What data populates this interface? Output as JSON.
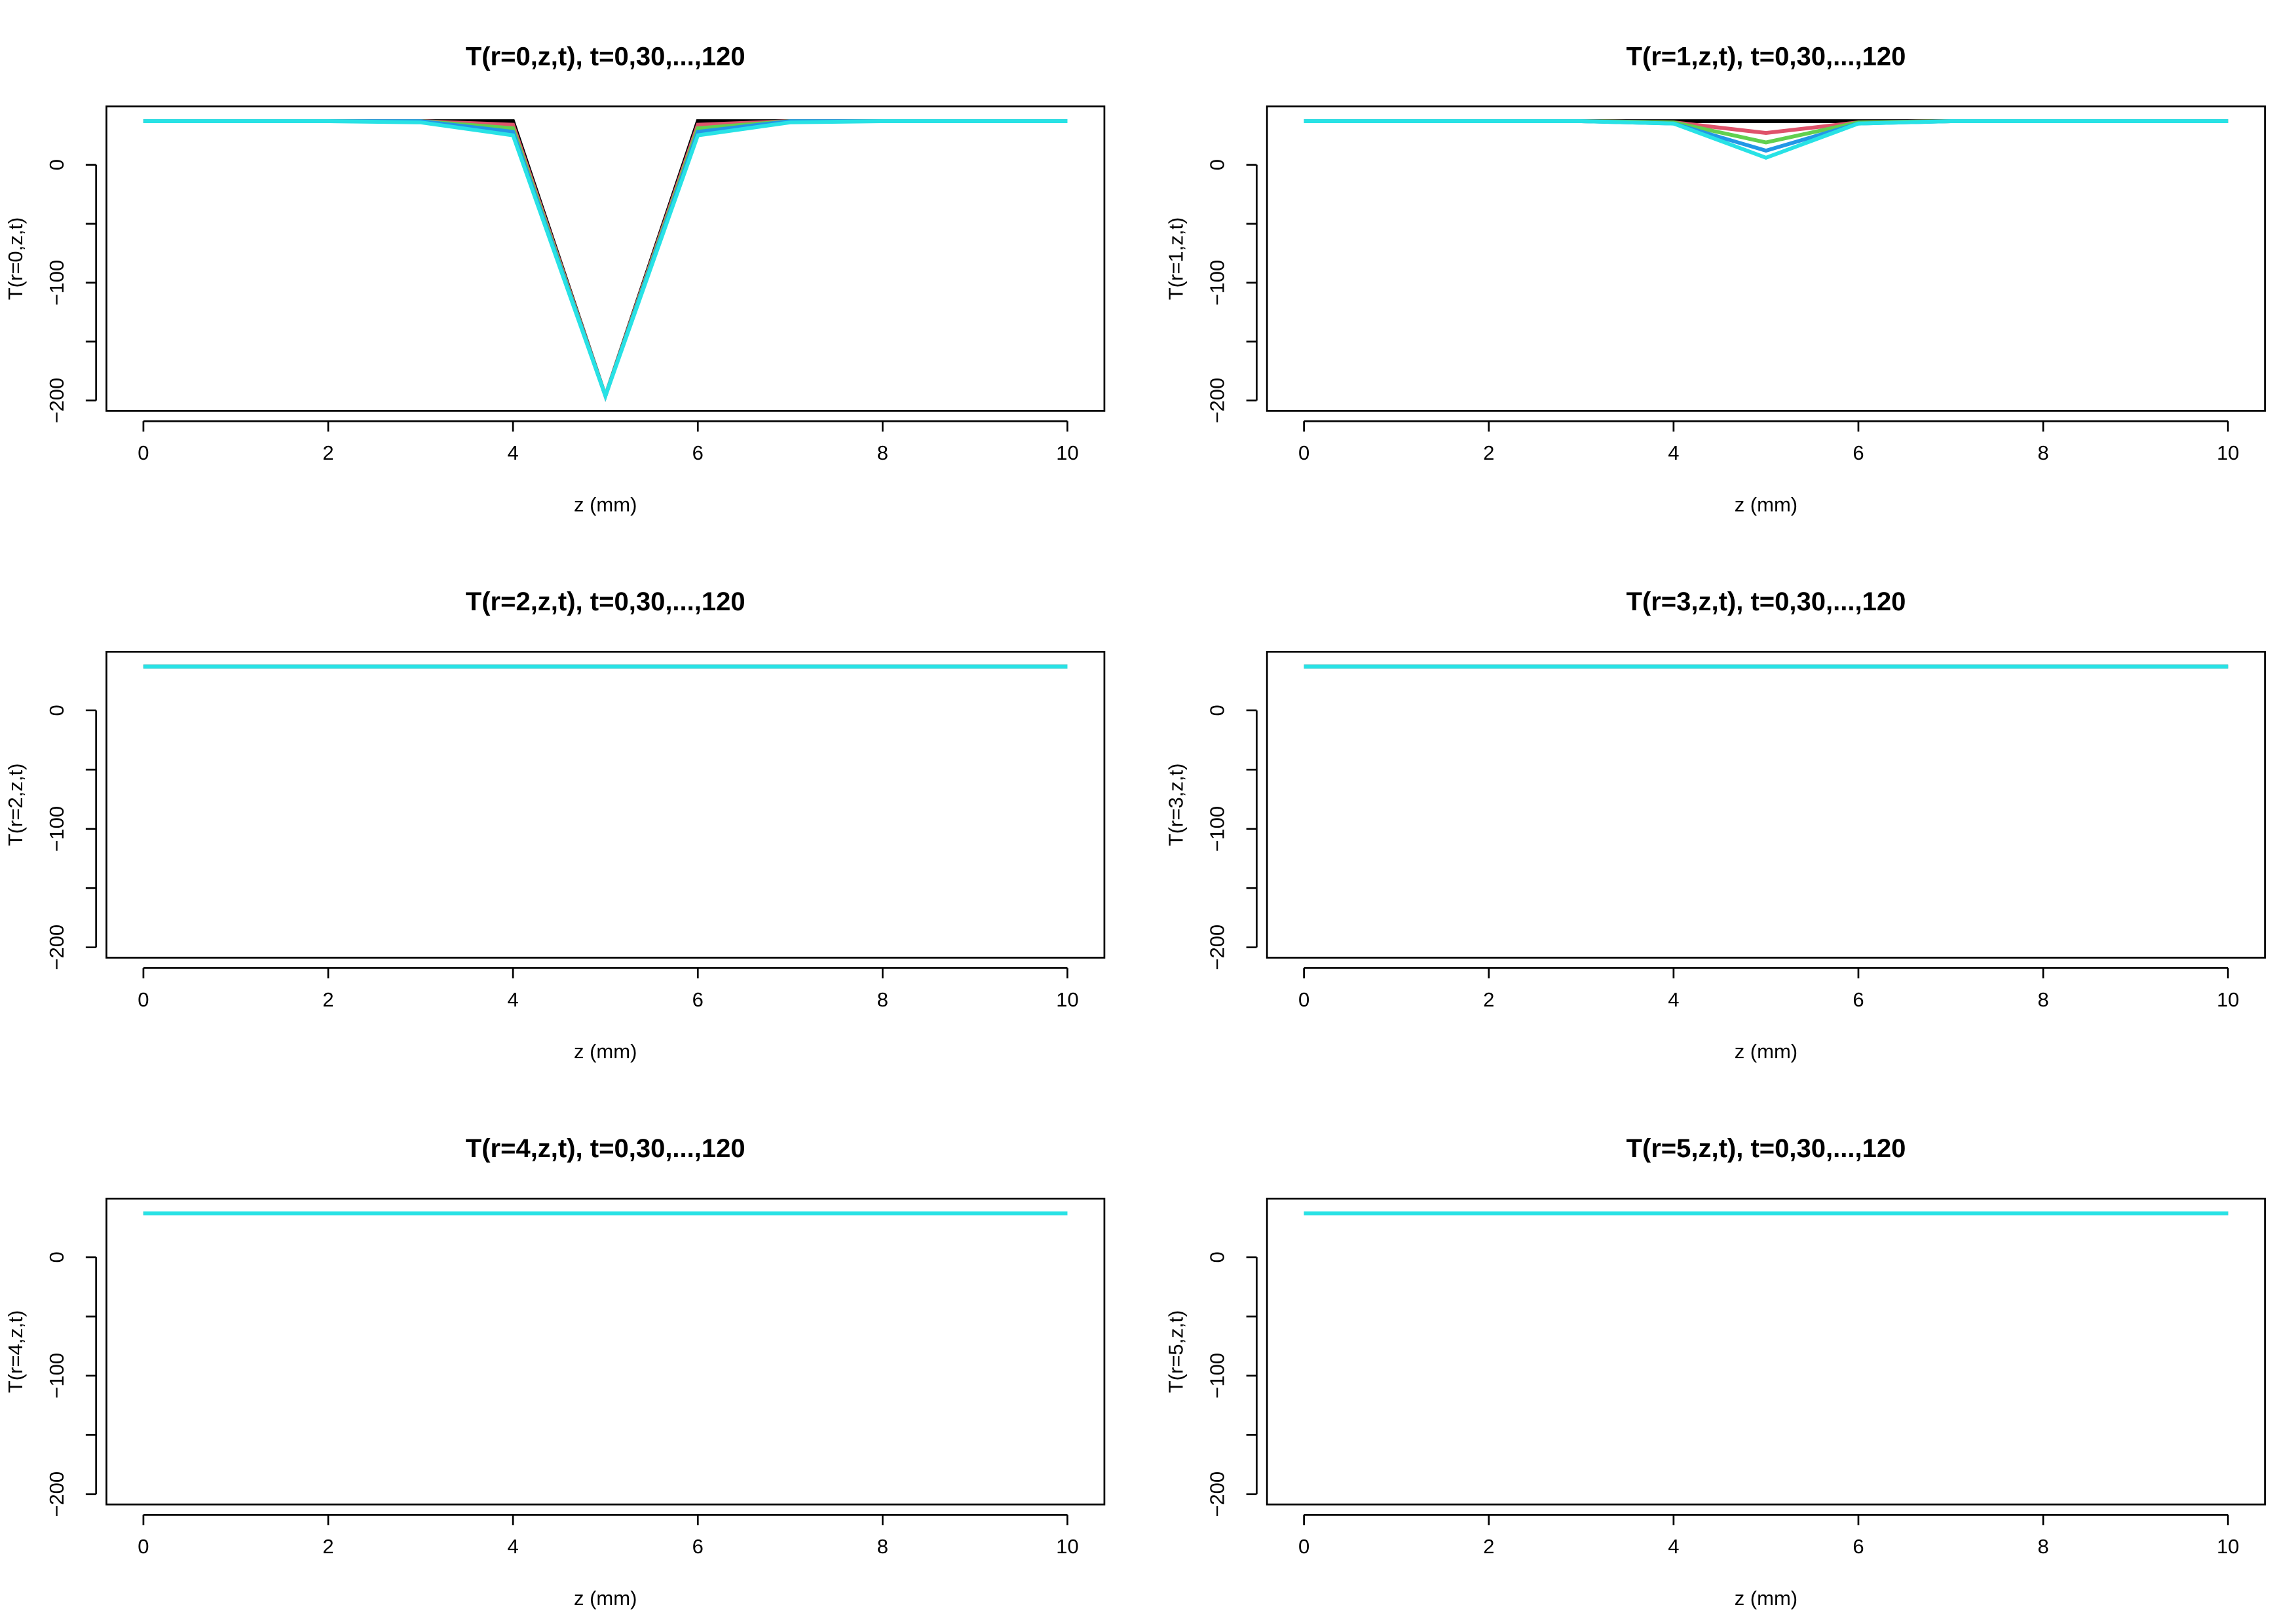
{
  "colors": {
    "background": "#ffffff",
    "axis": "#000000",
    "series": [
      "#000000",
      "#df536b",
      "#61d04f",
      "#2297e6",
      "#28e2e5"
    ]
  },
  "chart_data": [
    {
      "type": "line",
      "title": "T(r=0,z,t), t=0,30,...,120",
      "xlabel": "z (mm)",
      "ylabel": "T(r=0,z,t)",
      "xlim": [
        0,
        10
      ],
      "ylim": [
        -200,
        37
      ],
      "xticks": [
        "0",
        "2",
        "4",
        "6",
        "8",
        "10"
      ],
      "yticks": [
        "0",
        "-100",
        "-200"
      ],
      "grid": false,
      "x": [
        0,
        1,
        2,
        3,
        4,
        5,
        6,
        7,
        8,
        9,
        10
      ],
      "series": [
        {
          "values": [
            37,
            37,
            37,
            37,
            37,
            -196,
            37,
            37,
            37,
            37,
            37
          ]
        },
        {
          "values": [
            37,
            37,
            37,
            37,
            34,
            -196,
            34,
            37,
            37,
            37,
            37
          ]
        },
        {
          "values": [
            37,
            37,
            37,
            37,
            31,
            -196,
            31,
            37,
            37,
            37,
            37
          ]
        },
        {
          "values": [
            37,
            37,
            37,
            37,
            28,
            -196,
            28,
            37,
            37,
            37,
            37
          ]
        },
        {
          "values": [
            37,
            37,
            37,
            36,
            25,
            -196,
            25,
            36,
            37,
            37,
            37
          ]
        }
      ]
    },
    {
      "type": "line",
      "title": "T(r=1,z,t), t=0,30,...,120",
      "xlabel": "z (mm)",
      "ylabel": "T(r=1,z,t)",
      "xlim": [
        0,
        10
      ],
      "ylim": [
        -200,
        37
      ],
      "xticks": [
        "0",
        "2",
        "4",
        "6",
        "8",
        "10"
      ],
      "yticks": [
        "0",
        "-100",
        "-200"
      ],
      "grid": false,
      "x": [
        0,
        1,
        2,
        3,
        4,
        5,
        6,
        7,
        8,
        9,
        10
      ],
      "series": [
        {
          "values": [
            37,
            37,
            37,
            37,
            37,
            37,
            37,
            37,
            37,
            37,
            37
          ]
        },
        {
          "values": [
            37,
            37,
            37,
            37,
            36,
            27,
            36,
            37,
            37,
            37,
            37
          ]
        },
        {
          "values": [
            37,
            37,
            37,
            37,
            36,
            19,
            36,
            37,
            37,
            37,
            37
          ]
        },
        {
          "values": [
            37,
            37,
            37,
            37,
            35,
            12,
            35,
            37,
            37,
            37,
            37
          ]
        },
        {
          "values": [
            37,
            37,
            37,
            37,
            35,
            6,
            35,
            37,
            37,
            37,
            37
          ]
        }
      ]
    },
    {
      "type": "line",
      "title": "T(r=2,z,t), t=0,30,...,120",
      "xlabel": "z (mm)",
      "ylabel": "T(r=2,z,t)",
      "xlim": [
        0,
        10
      ],
      "ylim": [
        -200,
        37
      ],
      "xticks": [
        "0",
        "2",
        "4",
        "6",
        "8",
        "10"
      ],
      "yticks": [
        "0",
        "-100",
        "-200"
      ],
      "grid": false,
      "x": [
        0,
        1,
        2,
        3,
        4,
        5,
        6,
        7,
        8,
        9,
        10
      ],
      "series": [
        {
          "values": [
            37,
            37,
            37,
            37,
            37,
            37,
            37,
            37,
            37,
            37,
            37
          ]
        },
        {
          "values": [
            37,
            37,
            37,
            37,
            37,
            37,
            37,
            37,
            37,
            37,
            37
          ]
        },
        {
          "values": [
            37,
            37,
            37,
            37,
            37,
            37,
            37,
            37,
            37,
            37,
            37
          ]
        },
        {
          "values": [
            37,
            37,
            37,
            37,
            37,
            37,
            37,
            37,
            37,
            37,
            37
          ]
        },
        {
          "values": [
            37,
            37,
            37,
            37,
            37,
            37,
            37,
            37,
            37,
            37,
            37
          ]
        }
      ]
    },
    {
      "type": "line",
      "title": "T(r=3,z,t), t=0,30,...,120",
      "xlabel": "z (mm)",
      "ylabel": "T(r=3,z,t)",
      "xlim": [
        0,
        10
      ],
      "ylim": [
        -200,
        37
      ],
      "xticks": [
        "0",
        "2",
        "4",
        "6",
        "8",
        "10"
      ],
      "yticks": [
        "0",
        "-100",
        "-200"
      ],
      "grid": false,
      "x": [
        0,
        1,
        2,
        3,
        4,
        5,
        6,
        7,
        8,
        9,
        10
      ],
      "series": [
        {
          "values": [
            37,
            37,
            37,
            37,
            37,
            37,
            37,
            37,
            37,
            37,
            37
          ]
        },
        {
          "values": [
            37,
            37,
            37,
            37,
            37,
            37,
            37,
            37,
            37,
            37,
            37
          ]
        },
        {
          "values": [
            37,
            37,
            37,
            37,
            37,
            37,
            37,
            37,
            37,
            37,
            37
          ]
        },
        {
          "values": [
            37,
            37,
            37,
            37,
            37,
            37,
            37,
            37,
            37,
            37,
            37
          ]
        },
        {
          "values": [
            37,
            37,
            37,
            37,
            37,
            37,
            37,
            37,
            37,
            37,
            37
          ]
        }
      ]
    },
    {
      "type": "line",
      "title": "T(r=4,z,t), t=0,30,...,120",
      "xlabel": "z (mm)",
      "ylabel": "T(r=4,z,t)",
      "xlim": [
        0,
        10
      ],
      "ylim": [
        -200,
        37
      ],
      "xticks": [
        "0",
        "2",
        "4",
        "6",
        "8",
        "10"
      ],
      "yticks": [
        "0",
        "-100",
        "-200"
      ],
      "grid": false,
      "x": [
        0,
        1,
        2,
        3,
        4,
        5,
        6,
        7,
        8,
        9,
        10
      ],
      "series": [
        {
          "values": [
            37,
            37,
            37,
            37,
            37,
            37,
            37,
            37,
            37,
            37,
            37
          ]
        },
        {
          "values": [
            37,
            37,
            37,
            37,
            37,
            37,
            37,
            37,
            37,
            37,
            37
          ]
        },
        {
          "values": [
            37,
            37,
            37,
            37,
            37,
            37,
            37,
            37,
            37,
            37,
            37
          ]
        },
        {
          "values": [
            37,
            37,
            37,
            37,
            37,
            37,
            37,
            37,
            37,
            37,
            37
          ]
        },
        {
          "values": [
            37,
            37,
            37,
            37,
            37,
            37,
            37,
            37,
            37,
            37,
            37
          ]
        }
      ]
    },
    {
      "type": "line",
      "title": "T(r=5,z,t), t=0,30,...,120",
      "xlabel": "z (mm)",
      "ylabel": "T(r=5,z,t)",
      "xlim": [
        0,
        10
      ],
      "ylim": [
        -200,
        37
      ],
      "xticks": [
        "0",
        "2",
        "4",
        "6",
        "8",
        "10"
      ],
      "yticks": [
        "0",
        "-100",
        "-200"
      ],
      "grid": false,
      "x": [
        0,
        1,
        2,
        3,
        4,
        5,
        6,
        7,
        8,
        9,
        10
      ],
      "series": [
        {
          "values": [
            37,
            37,
            37,
            37,
            37,
            37,
            37,
            37,
            37,
            37,
            37
          ]
        },
        {
          "values": [
            37,
            37,
            37,
            37,
            37,
            37,
            37,
            37,
            37,
            37,
            37
          ]
        },
        {
          "values": [
            37,
            37,
            37,
            37,
            37,
            37,
            37,
            37,
            37,
            37,
            37
          ]
        },
        {
          "values": [
            37,
            37,
            37,
            37,
            37,
            37,
            37,
            37,
            37,
            37,
            37
          ]
        },
        {
          "values": [
            37,
            37,
            37,
            37,
            37,
            37,
            37,
            37,
            37,
            37,
            37
          ]
        }
      ]
    }
  ]
}
